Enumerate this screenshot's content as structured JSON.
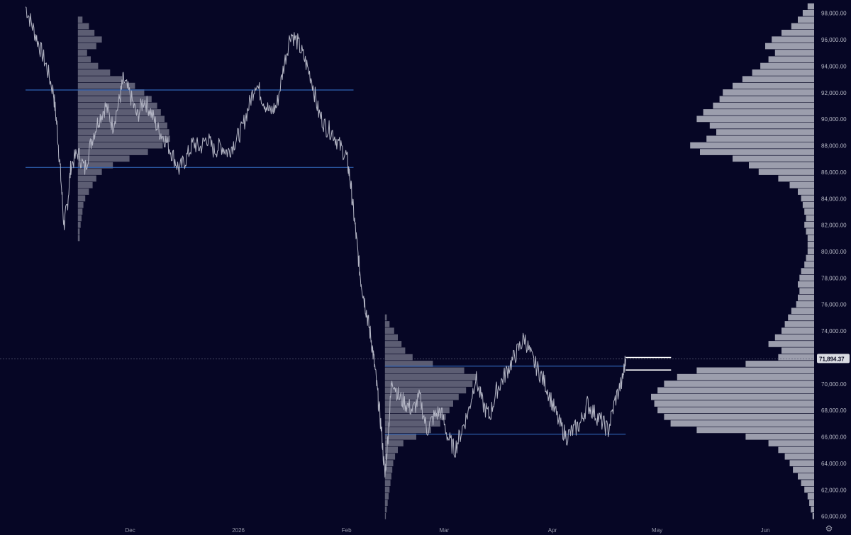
{
  "chart_data": {
    "type": "line",
    "symbol_context": "price chart with volume profile",
    "y_axis": {
      "ylim": [
        59500,
        99000
      ],
      "ticks": [
        "98,000.00",
        "96,000.00",
        "94,000.00",
        "92,000.00",
        "90,000.00",
        "88,000.00",
        "86,000.00",
        "84,000.00",
        "82,000.00",
        "80,000.00",
        "78,000.00",
        "76,000.00",
        "74,000.00",
        "72,000.00",
        "70,000.00",
        "68,000.00",
        "66,000.00",
        "64,000.00",
        "62,000.00",
        "60,000.00"
      ],
      "tick_values": [
        98000,
        96000,
        94000,
        92000,
        90000,
        88000,
        86000,
        84000,
        82000,
        80000,
        78000,
        76000,
        74000,
        72000,
        70000,
        68000,
        66000,
        64000,
        62000,
        60000
      ]
    },
    "x_axis": {
      "ticks": [
        "Dec",
        "2026",
        "Feb",
        "Mar",
        "Apr",
        "May",
        "Jun"
      ],
      "tick_days": [
        30,
        61,
        92,
        120,
        151,
        181,
        212
      ],
      "xlim_days": [
        0,
        226
      ]
    },
    "last_price": 71894.37,
    "last_price_label": "71,894.37",
    "price_series_close": [
      [
        0,
        98500
      ],
      [
        2,
        97000
      ],
      [
        4,
        95500
      ],
      [
        6,
        94000
      ],
      [
        8,
        92000
      ],
      [
        9,
        89500
      ],
      [
        10,
        86000
      ],
      [
        11,
        82000
      ],
      [
        12,
        83500
      ],
      [
        13,
        86500
      ],
      [
        15,
        87500
      ],
      [
        17,
        86200
      ],
      [
        19,
        88500
      ],
      [
        21,
        90000
      ],
      [
        23,
        91000
      ],
      [
        25,
        89500
      ],
      [
        27,
        91500
      ],
      [
        28,
        93000
      ],
      [
        30,
        91800
      ],
      [
        32,
        90200
      ],
      [
        34,
        91500
      ],
      [
        36,
        90500
      ],
      [
        38,
        89200
      ],
      [
        40,
        88500
      ],
      [
        42,
        87400
      ],
      [
        44,
        86200
      ],
      [
        46,
        87000
      ],
      [
        48,
        88200
      ],
      [
        50,
        87800
      ],
      [
        52,
        88600
      ],
      [
        54,
        87600
      ],
      [
        56,
        88000
      ],
      [
        58,
        87500
      ],
      [
        60,
        88300
      ],
      [
        62,
        89200
      ],
      [
        64,
        91000
      ],
      [
        66,
        92800
      ],
      [
        68,
        91500
      ],
      [
        70,
        90500
      ],
      [
        72,
        91000
      ],
      [
        74,
        94000
      ],
      [
        76,
        96500
      ],
      [
        78,
        95800
      ],
      [
        80,
        94500
      ],
      [
        82,
        93000
      ],
      [
        84,
        90500
      ],
      [
        86,
        89400
      ],
      [
        88,
        89000
      ],
      [
        90,
        88000
      ],
      [
        92,
        87200
      ],
      [
        93,
        85500
      ],
      [
        94,
        83000
      ],
      [
        95,
        80500
      ],
      [
        96,
        78000
      ],
      [
        97,
        76500
      ],
      [
        98,
        75000
      ],
      [
        99,
        73500
      ],
      [
        100,
        71500
      ],
      [
        101,
        69000
      ],
      [
        102,
        66500
      ],
      [
        103,
        63000
      ],
      [
        104,
        66500
      ],
      [
        105,
        70500
      ],
      [
        107,
        69000
      ],
      [
        109,
        68500
      ],
      [
        111,
        68000
      ],
      [
        113,
        69000
      ],
      [
        115,
        66500
      ],
      [
        117,
        67500
      ],
      [
        119,
        68000
      ],
      [
        121,
        66000
      ],
      [
        123,
        65000
      ],
      [
        125,
        66500
      ],
      [
        127,
        68000
      ],
      [
        129,
        70500
      ],
      [
        131,
        68500
      ],
      [
        133,
        67500
      ],
      [
        135,
        69500
      ],
      [
        137,
        70500
      ],
      [
        139,
        71500
      ],
      [
        141,
        72500
      ],
      [
        143,
        73500
      ],
      [
        145,
        72000
      ],
      [
        147,
        71000
      ],
      [
        149,
        70000
      ],
      [
        151,
        68500
      ],
      [
        153,
        67000
      ],
      [
        155,
        66000
      ],
      [
        157,
        66500
      ],
      [
        159,
        67000
      ],
      [
        161,
        68500
      ],
      [
        163,
        67800
      ],
      [
        165,
        67200
      ],
      [
        167,
        66500
      ],
      [
        169,
        68800
      ],
      [
        171,
        70200
      ],
      [
        172,
        71900
      ]
    ],
    "horizontal_levels": [
      {
        "price": 92200,
        "day_start": 0,
        "day_end": 94,
        "color": "#2f63b5"
      },
      {
        "price": 86350,
        "day_start": 0,
        "day_end": 94,
        "color": "#2f63b5"
      },
      {
        "price": 71350,
        "day_start": 103,
        "day_end": 172,
        "color": "#2f63b5"
      },
      {
        "price": 66200,
        "day_start": 103,
        "day_end": 172,
        "color": "#2f63b5"
      },
      {
        "price": 72000,
        "day_start": 172,
        "day_end": 185,
        "color": "#ffffff"
      },
      {
        "price": 71050,
        "day_start": 172,
        "day_end": 185,
        "color": "#ffffff"
      }
    ],
    "volume_profiles": [
      {
        "day_anchor": 15,
        "side": "left",
        "bins": [
          [
            97500,
            0.05
          ],
          [
            97000,
            0.12
          ],
          [
            96500,
            0.18
          ],
          [
            96000,
            0.26
          ],
          [
            95500,
            0.2
          ],
          [
            95000,
            0.1
          ],
          [
            94500,
            0.14
          ],
          [
            94000,
            0.22
          ],
          [
            93500,
            0.35
          ],
          [
            93000,
            0.48
          ],
          [
            92500,
            0.62
          ],
          [
            92000,
            0.72
          ],
          [
            91500,
            0.8
          ],
          [
            91000,
            0.86
          ],
          [
            90500,
            0.9
          ],
          [
            90000,
            0.94
          ],
          [
            89500,
            0.97
          ],
          [
            89000,
            0.99
          ],
          [
            88500,
            1.0
          ],
          [
            88000,
            0.92
          ],
          [
            87500,
            0.76
          ],
          [
            87000,
            0.56
          ],
          [
            86500,
            0.38
          ],
          [
            86000,
            0.26
          ],
          [
            85500,
            0.2
          ],
          [
            85000,
            0.16
          ],
          [
            84500,
            0.12
          ],
          [
            84000,
            0.08
          ],
          [
            83500,
            0.06
          ],
          [
            83000,
            0.05
          ],
          [
            82500,
            0.04
          ],
          [
            82000,
            0.03
          ],
          [
            81500,
            0.02
          ],
          [
            81000,
            0.02
          ]
        ]
      },
      {
        "day_anchor": 103,
        "side": "left",
        "bins": [
          [
            75000,
            0.02
          ],
          [
            74500,
            0.05
          ],
          [
            74000,
            0.1
          ],
          [
            73500,
            0.14
          ],
          [
            73000,
            0.18
          ],
          [
            72500,
            0.22
          ],
          [
            72000,
            0.3
          ],
          [
            71500,
            0.52
          ],
          [
            71000,
            0.86
          ],
          [
            70500,
            1.0
          ],
          [
            70000,
            0.95
          ],
          [
            69500,
            0.88
          ],
          [
            69000,
            0.8
          ],
          [
            68500,
            0.74
          ],
          [
            68000,
            0.7
          ],
          [
            67500,
            0.66
          ],
          [
            67000,
            0.6
          ],
          [
            66500,
            0.5
          ],
          [
            66000,
            0.34
          ],
          [
            65500,
            0.2
          ],
          [
            65000,
            0.14
          ],
          [
            64500,
            0.11
          ],
          [
            64000,
            0.09
          ],
          [
            63500,
            0.08
          ],
          [
            63000,
            0.07
          ],
          [
            62500,
            0.06
          ],
          [
            62000,
            0.05
          ],
          [
            61500,
            0.04
          ],
          [
            61000,
            0.03
          ],
          [
            60500,
            0.02
          ],
          [
            60000,
            0.01
          ]
        ]
      },
      {
        "day_anchor": 226,
        "side": "right",
        "bins": [
          [
            98500,
            0.04
          ],
          [
            98000,
            0.07
          ],
          [
            97500,
            0.1
          ],
          [
            97000,
            0.14
          ],
          [
            96500,
            0.2
          ],
          [
            96000,
            0.26
          ],
          [
            95500,
            0.3
          ],
          [
            95000,
            0.24
          ],
          [
            94500,
            0.28
          ],
          [
            94000,
            0.33
          ],
          [
            93500,
            0.38
          ],
          [
            93000,
            0.44
          ],
          [
            92500,
            0.5
          ],
          [
            92000,
            0.56
          ],
          [
            91500,
            0.58
          ],
          [
            91000,
            0.62
          ],
          [
            90500,
            0.68
          ],
          [
            90000,
            0.72
          ],
          [
            89500,
            0.64
          ],
          [
            89000,
            0.6
          ],
          [
            88500,
            0.66
          ],
          [
            88000,
            0.76
          ],
          [
            87500,
            0.7
          ],
          [
            87000,
            0.5
          ],
          [
            86500,
            0.4
          ],
          [
            86000,
            0.34
          ],
          [
            85500,
            0.22
          ],
          [
            85000,
            0.15
          ],
          [
            84500,
            0.1
          ],
          [
            84000,
            0.08
          ],
          [
            83500,
            0.07
          ],
          [
            83000,
            0.06
          ],
          [
            82500,
            0.05
          ],
          [
            82000,
            0.06
          ],
          [
            81500,
            0.05
          ],
          [
            81000,
            0.04
          ],
          [
            80500,
            0.04
          ],
          [
            80000,
            0.04
          ],
          [
            79500,
            0.05
          ],
          [
            79000,
            0.06
          ],
          [
            78500,
            0.08
          ],
          [
            78000,
            0.09
          ],
          [
            77500,
            0.1
          ],
          [
            77000,
            0.09
          ],
          [
            76500,
            0.1
          ],
          [
            76000,
            0.11
          ],
          [
            75500,
            0.14
          ],
          [
            75000,
            0.16
          ],
          [
            74500,
            0.18
          ],
          [
            74000,
            0.2
          ],
          [
            73500,
            0.24
          ],
          [
            73000,
            0.28
          ],
          [
            72500,
            0.2
          ],
          [
            72000,
            0.22
          ],
          [
            71500,
            0.42
          ],
          [
            71000,
            0.72
          ],
          [
            70500,
            0.84
          ],
          [
            70000,
            0.92
          ],
          [
            69500,
            0.96
          ],
          [
            69000,
            1.0
          ],
          [
            68500,
            0.98
          ],
          [
            68000,
            0.96
          ],
          [
            67500,
            0.92
          ],
          [
            67000,
            0.88
          ],
          [
            66500,
            0.72
          ],
          [
            66000,
            0.42
          ],
          [
            65500,
            0.28
          ],
          [
            65000,
            0.22
          ],
          [
            64500,
            0.18
          ],
          [
            64000,
            0.15
          ],
          [
            63500,
            0.13
          ],
          [
            63000,
            0.1
          ],
          [
            62500,
            0.08
          ],
          [
            62000,
            0.06
          ],
          [
            61500,
            0.04
          ],
          [
            61000,
            0.03
          ],
          [
            60500,
            0.02
          ],
          [
            60000,
            0.01
          ]
        ]
      }
    ],
    "colors": {
      "background": "#060625",
      "price_line": "#b3b5c4",
      "volume_profile": "#a4a6b4",
      "axis_text": "#b7b9c6",
      "crosshair": "#5d5f78"
    },
    "grid": false
  },
  "ui": {
    "settings_icon": "settings-gear-icon"
  }
}
